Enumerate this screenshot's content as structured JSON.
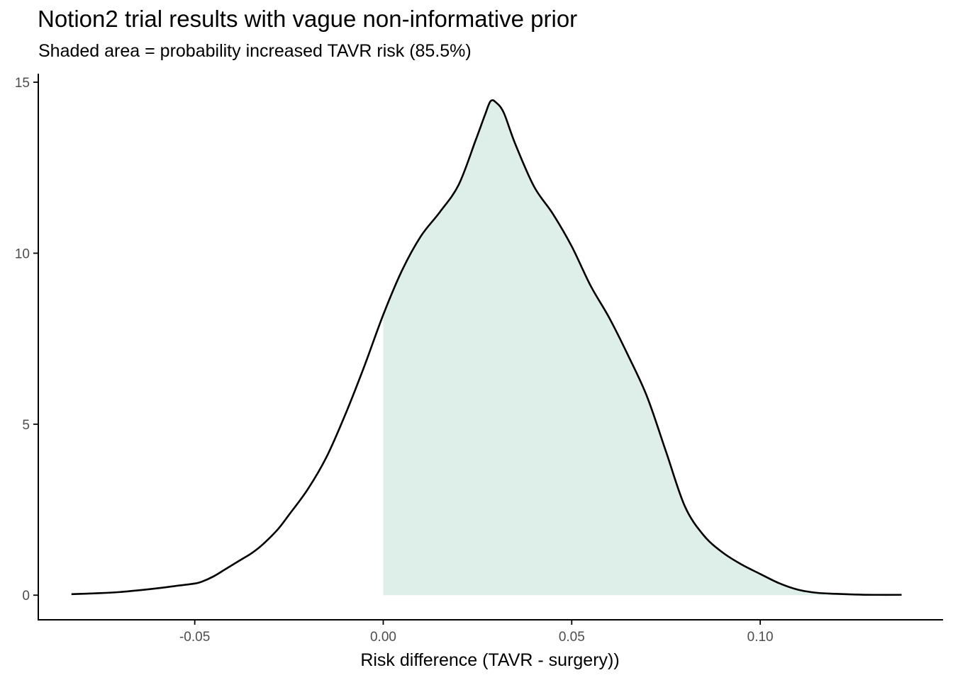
{
  "chart_data": {
    "type": "area",
    "title": "Notion2 trial results with vague non-informative prior",
    "subtitle": "Shaded area = probability increased TAVR risk (85.5%)",
    "xlabel": "Risk difference (TAVR - surgery))",
    "ylabel": "",
    "xlim": [
      -0.0915,
      0.1485
    ],
    "ylim": [
      -0.72,
      15.25
    ],
    "x_ticks": [
      -0.05,
      0.0,
      0.05,
      0.1
    ],
    "x_tick_labels": [
      "-0.05",
      "0.00",
      "0.05",
      "0.10"
    ],
    "y_ticks": [
      0,
      5,
      10,
      15
    ],
    "y_tick_labels": [
      "0",
      "5",
      "10",
      "15"
    ],
    "grid": false,
    "shade_from_x": 0.0,
    "shade_probability_percent": 85.5,
    "colors": {
      "line": "#000000",
      "shade": "#deefe9",
      "axis": "#000000",
      "tick_label": "#4d4d4d"
    },
    "series": [
      {
        "points": [
          [
            -0.0827,
            0.03
          ],
          [
            -0.075,
            0.06
          ],
          [
            -0.07,
            0.09
          ],
          [
            -0.065,
            0.14
          ],
          [
            -0.06,
            0.2
          ],
          [
            -0.055,
            0.27
          ],
          [
            -0.05,
            0.34
          ],
          [
            -0.048,
            0.4
          ],
          [
            -0.045,
            0.55
          ],
          [
            -0.042,
            0.75
          ],
          [
            -0.038,
            1.02
          ],
          [
            -0.035,
            1.22
          ],
          [
            -0.032,
            1.48
          ],
          [
            -0.028,
            1.92
          ],
          [
            -0.025,
            2.35
          ],
          [
            -0.02,
            3.1
          ],
          [
            -0.015,
            4.05
          ],
          [
            -0.01,
            5.3
          ],
          [
            -0.005,
            6.7
          ],
          [
            0.0,
            8.2
          ],
          [
            0.005,
            9.5
          ],
          [
            0.01,
            10.5
          ],
          [
            0.015,
            11.2
          ],
          [
            0.02,
            12.0
          ],
          [
            0.0245,
            13.3
          ],
          [
            0.027,
            14.05
          ],
          [
            0.0285,
            14.45
          ],
          [
            0.03,
            14.4
          ],
          [
            0.032,
            14.1
          ],
          [
            0.035,
            13.2
          ],
          [
            0.04,
            11.95
          ],
          [
            0.045,
            11.15
          ],
          [
            0.05,
            10.2
          ],
          [
            0.055,
            9.05
          ],
          [
            0.06,
            8.1
          ],
          [
            0.065,
            7.0
          ],
          [
            0.07,
            5.8
          ],
          [
            0.075,
            4.2
          ],
          [
            0.08,
            2.6
          ],
          [
            0.085,
            1.75
          ],
          [
            0.09,
            1.25
          ],
          [
            0.095,
            0.9
          ],
          [
            0.1,
            0.62
          ],
          [
            0.105,
            0.35
          ],
          [
            0.11,
            0.16
          ],
          [
            0.115,
            0.07
          ],
          [
            0.12,
            0.04
          ],
          [
            0.125,
            0.02
          ],
          [
            0.13,
            0.01
          ],
          [
            0.1375,
            0.01
          ]
        ]
      }
    ]
  }
}
